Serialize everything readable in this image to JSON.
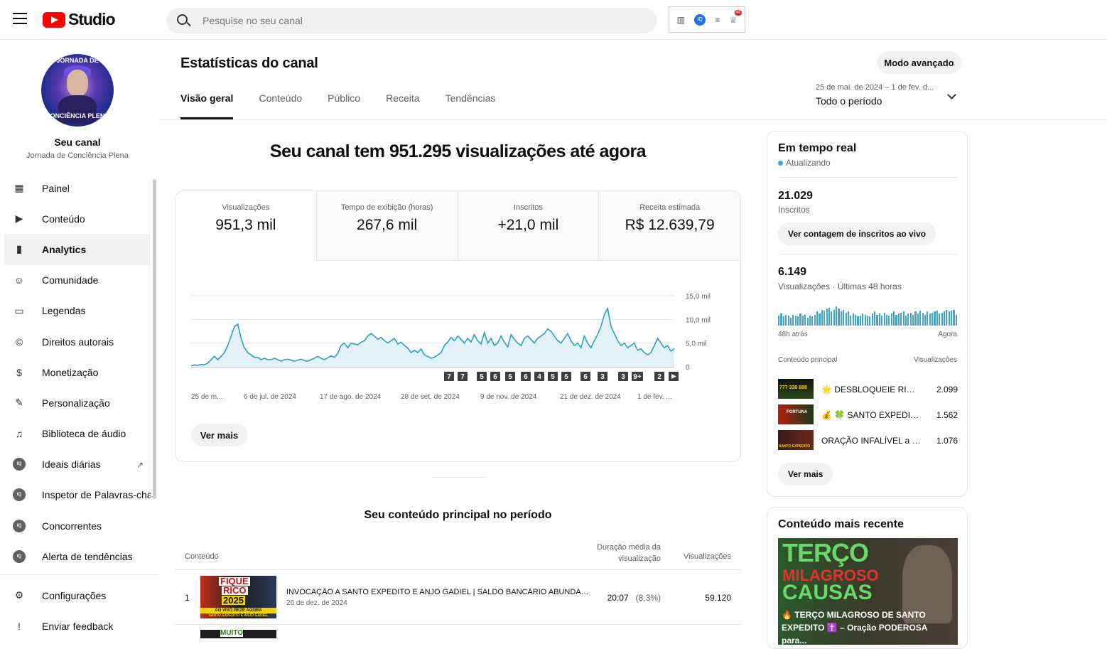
{
  "header": {
    "logo_text": "Studio",
    "search_placeholder": "Pesquise no seu canal",
    "ext_badge": "IQ",
    "ext_count": "46"
  },
  "channel": {
    "avatar_text_top": "JORNADA DE",
    "avatar_text_bottom": "CONCIÊNCIA PLENA",
    "name": "Seu canal",
    "subtitle": "Jornada de Conciência Plena"
  },
  "nav": {
    "items": [
      {
        "label": "Painel",
        "icon": "dashboard-icon"
      },
      {
        "label": "Conteúdo",
        "icon": "content-icon"
      },
      {
        "label": "Analytics",
        "icon": "analytics-icon",
        "active": true
      },
      {
        "label": "Comunidade",
        "icon": "community-icon"
      },
      {
        "label": "Legendas",
        "icon": "subtitles-icon"
      },
      {
        "label": "Direitos autorais",
        "icon": "copyright-icon"
      },
      {
        "label": "Monetização",
        "icon": "monetization-icon"
      },
      {
        "label": "Personalização",
        "icon": "customization-icon"
      },
      {
        "label": "Biblioteca de áudio",
        "icon": "audio-library-icon"
      },
      {
        "label": "Ideais diárias",
        "icon": "vidiq-icon"
      },
      {
        "label": "Inspetor de Palavras-chave",
        "icon": "vidiq-icon"
      },
      {
        "label": "Concorrentes",
        "icon": "vidiq-icon"
      },
      {
        "label": "Alerta de tendências",
        "icon": "vidiq-icon"
      }
    ],
    "bottom": [
      {
        "label": "Configurações",
        "icon": "settings-icon"
      },
      {
        "label": "Enviar feedback",
        "icon": "feedback-icon"
      }
    ]
  },
  "page": {
    "title": "Estatísticas do canal",
    "advanced_button": "Modo avançado",
    "tabs": [
      "Visão geral",
      "Conteúdo",
      "Público",
      "Receita",
      "Tendências"
    ],
    "period_range": "25 de mai. de 2024 – 1 de fev. d...",
    "period_value": "Todo o período",
    "headline": "Seu canal tem 951.295 visualizações até agora"
  },
  "metrics": [
    {
      "label": "Visualizações",
      "value": "951,3 mil"
    },
    {
      "label": "Tempo de exibição (horas)",
      "value": "267,6 mil"
    },
    {
      "label": "Inscritos",
      "value": "+21,0 mil"
    },
    {
      "label": "Receita estimada",
      "value": "R$ 12.639,79"
    }
  ],
  "chart_data": {
    "type": "area",
    "series": [
      {
        "values": [
          0.2,
          0.4,
          0.3,
          0.5,
          0.4,
          0.8,
          1.5,
          2.2,
          1.5,
          2.2,
          3.0,
          4.5,
          6.5,
          8.5,
          9.0,
          6.0,
          4.0,
          3.0,
          2.5,
          2.0,
          2.0,
          1.5,
          1.8,
          1.5,
          1.5,
          1.8,
          1.5,
          1.2,
          1.5,
          1.6,
          1.4,
          1.2,
          1.4,
          1.6,
          1.3,
          1.2,
          1.5,
          1.8,
          2.2,
          1.8,
          1.5,
          1.9,
          2.3,
          2.0,
          2.8,
          4.5,
          5.0,
          4.0,
          5.0,
          4.8,
          4.6,
          5.2,
          5.5,
          6.5,
          7.0,
          6.5,
          5.8,
          6.2,
          5.5,
          5.0,
          5.5,
          6.0,
          4.8,
          5.2,
          4.5,
          4.0,
          3.0,
          3.5,
          3.0,
          3.8,
          2.5,
          2.2,
          1.8,
          2.0,
          2.5,
          3.0,
          4.5,
          5.2,
          6.2,
          5.5,
          6.5,
          5.8,
          5.0,
          6.0,
          5.2,
          6.8,
          5.5,
          4.8,
          7.2,
          5.0,
          6.0,
          4.5,
          5.0,
          6.5,
          5.2,
          4.2,
          6.8,
          5.8,
          5.0,
          4.5,
          6.0,
          6.5,
          5.8,
          5.0,
          6.0,
          6.5,
          7.0,
          8.0,
          7.5,
          6.5,
          5.5,
          5.0,
          6.0,
          7.0,
          5.5,
          4.5,
          5.0,
          4.0,
          6.5,
          5.0,
          4.0,
          5.5,
          6.8,
          8.5,
          11.0,
          12.3,
          8.5,
          7.0,
          5.5,
          4.5,
          5.0,
          4.0,
          4.5,
          5.0,
          3.5,
          3.8,
          3.0,
          2.5,
          3.0,
          4.5,
          6.0,
          5.0,
          4.0,
          4.5,
          3.3,
          3.8
        ]
      }
    ],
    "x_labels": [
      "25 de m...",
      "6 de jul. de 2024",
      "17 de ago. de 2024",
      "28 de set. de 2024",
      "9 de nov. de 2024",
      "21 de dez. de 2024",
      "1 de fev. ..."
    ],
    "y_ticks": [
      "0",
      "5,0 mil",
      "10,0 mil",
      "15,0 mil"
    ],
    "ylim": [
      0,
      15
    ],
    "markers": [
      "7",
      "7",
      "5",
      "6",
      "5",
      "6",
      "4",
      "5",
      "5",
      "6",
      "3",
      "3",
      "9+",
      "2"
    ],
    "grid": true
  },
  "chart_button": "Ver mais",
  "top_content": {
    "title": "Seu conteúdo principal no período",
    "col_content": "Conteúdo",
    "col_duration": "Duração média da visualização",
    "col_views": "Visualizações",
    "rows": [
      {
        "rank": "1",
        "thumb_text": [
          "FIQUE",
          "RICO",
          "2025"
        ],
        "thumb_banner": "AO VIVO REZE AGORA",
        "thumb_sub": "SANTO EXPEDITO E ANJO GADIEL",
        "title": "INVOCAÇÃO A SANTO EXPEDITO E ANJO GADIEL | SALDO BANCÁRIO ABUNDANTE",
        "date": "26 de dez. de 2024",
        "duration": "20:07",
        "pct": "(8,3%)",
        "views": "59.120"
      }
    ],
    "next_thumb_text": "MUITO"
  },
  "realtime": {
    "title": "Em tempo real",
    "status": "Atualizando",
    "subs_value": "21.029",
    "subs_label": "Inscritos",
    "subs_button": "Ver contagem de inscritos ao vivo",
    "views_value": "6.149",
    "views_label": "Visualizações · Últimas 48 horas",
    "bars": [
      0.5,
      0.6,
      0.45,
      0.55,
      0.5,
      0.4,
      0.55,
      0.5,
      0.45,
      0.6,
      0.5,
      0.55,
      0.4,
      0.5,
      0.45,
      0.55,
      0.7,
      0.6,
      0.8,
      0.75,
      0.85,
      0.9,
      0.7,
      0.8,
      0.95,
      0.85,
      0.7,
      0.8,
      0.65,
      0.7,
      0.5,
      0.6,
      0.55,
      0.45,
      0.5,
      0.6,
      0.55,
      0.5,
      0.45,
      0.6,
      0.7,
      0.55,
      0.6,
      0.5,
      0.65,
      0.55,
      0.5,
      0.6,
      0.7,
      0.55,
      0.6,
      0.65,
      0.7,
      0.5,
      0.6,
      0.65,
      0.55,
      0.7,
      0.6,
      0.75,
      0.65,
      0.55,
      0.7,
      0.6,
      0.65,
      0.7,
      0.75,
      0.6,
      0.65,
      0.7,
      0.8,
      0.7,
      0.75,
      0.8,
      0.55
    ],
    "bar_start": "48h atrás",
    "bar_end": "Agora",
    "col_content": "Conteúdo principal",
    "col_views": "Visualizações",
    "items": [
      {
        "title": "🌟 DESBLOQUEIE RIQUEZA",
        "views": "2.099",
        "thumb_text": "777 338 888"
      },
      {
        "title": "💰 🍀 SANTO EXPEDITO",
        "views": "1.562",
        "thumb_text": "FORTUNA"
      },
      {
        "title": "ORAÇÃO INFALÍVEL a SANTO EXPEDITO",
        "views": "1.076",
        "thumb_text": "SANTO EXPEDITO"
      }
    ],
    "more_button": "Ver mais"
  },
  "recent": {
    "title": "Conteúdo mais recente",
    "thumb_words": [
      "TERÇO",
      "MILAGROSO",
      "CAUSAS"
    ],
    "caption": "🔥 TERÇO MILAGROSO DE SANTO EXPEDITO ✝️ – Oração PODEROSA para..."
  },
  "colors": {
    "accent": "#41a6c9",
    "brand": "#ff0000"
  }
}
